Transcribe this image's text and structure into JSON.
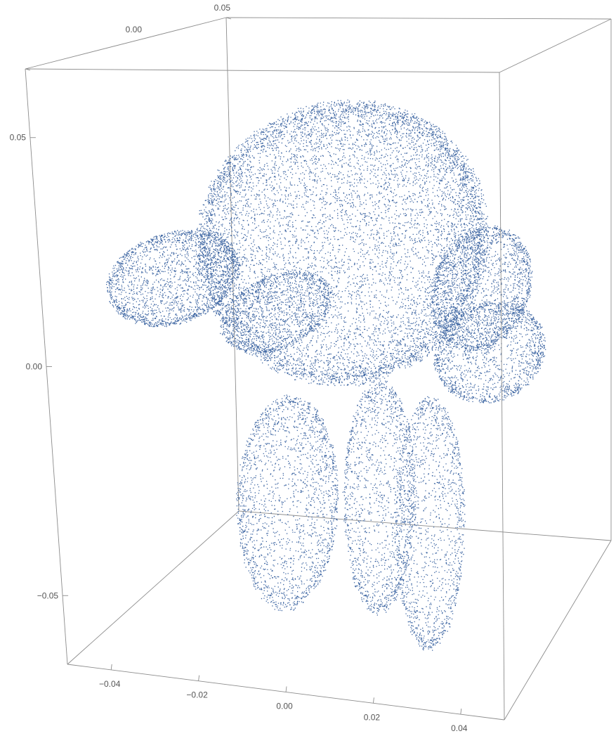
{
  "chart_data": {
    "type": "scatter",
    "subtype": "3d-point-cloud",
    "title": "",
    "xlabel": "",
    "ylabel": "",
    "zlabel": "",
    "grid": false,
    "legend": "none",
    "point_color": "#3f67a3",
    "box_color": "#8c8c8c",
    "x_axis": {
      "range": [
        -0.05,
        0.05
      ],
      "ticks": [
        -0.04,
        -0.02,
        0.0,
        0.02,
        0.04
      ],
      "tick_labels": [
        "−0.04",
        "−0.02",
        "0.00",
        "0.02",
        "0.04"
      ]
    },
    "y_axis": {
      "range": [
        0.0,
        0.05
      ],
      "ticks": [
        0.0,
        0.05
      ],
      "tick_labels": [
        "0.00",
        "0.05"
      ]
    },
    "z_axis": {
      "range": [
        -0.065,
        0.065
      ],
      "ticks": [
        -0.05,
        0.0,
        0.05
      ],
      "tick_labels": [
        "−0.05",
        "0.00",
        "0.05"
      ]
    },
    "shape_description_parts": [
      {
        "part": "palm",
        "center": [
          0.0,
          0.025,
          0.02
        ],
        "extent": [
          0.032,
          0.02,
          0.032
        ]
      },
      {
        "part": "left-thumb",
        "center": [
          -0.037,
          0.02,
          0.012
        ],
        "extent": [
          0.012,
          0.012,
          0.01
        ]
      },
      {
        "part": "right-lobe",
        "center": [
          0.034,
          0.022,
          0.012
        ],
        "extent": [
          0.01,
          0.012,
          0.013
        ]
      },
      {
        "part": "left-lobe",
        "center": [
          -0.021,
          0.03,
          0.0
        ],
        "extent": [
          0.01,
          0.012,
          0.008
        ]
      },
      {
        "part": "right-finger",
        "center": [
          0.038,
          0.018,
          0.0
        ],
        "extent": [
          0.012,
          0.01,
          0.01
        ]
      },
      {
        "part": "finger-1",
        "center": [
          -0.012,
          0.02,
          -0.038
        ],
        "extent": [
          0.01,
          0.01,
          0.024
        ]
      },
      {
        "part": "finger-2",
        "center": [
          0.01,
          0.02,
          -0.035
        ],
        "extent": [
          0.007,
          0.008,
          0.026
        ]
      },
      {
        "part": "finger-3",
        "center": [
          0.022,
          0.02,
          -0.04
        ],
        "extent": [
          0.007,
          0.008,
          0.028
        ]
      }
    ]
  }
}
